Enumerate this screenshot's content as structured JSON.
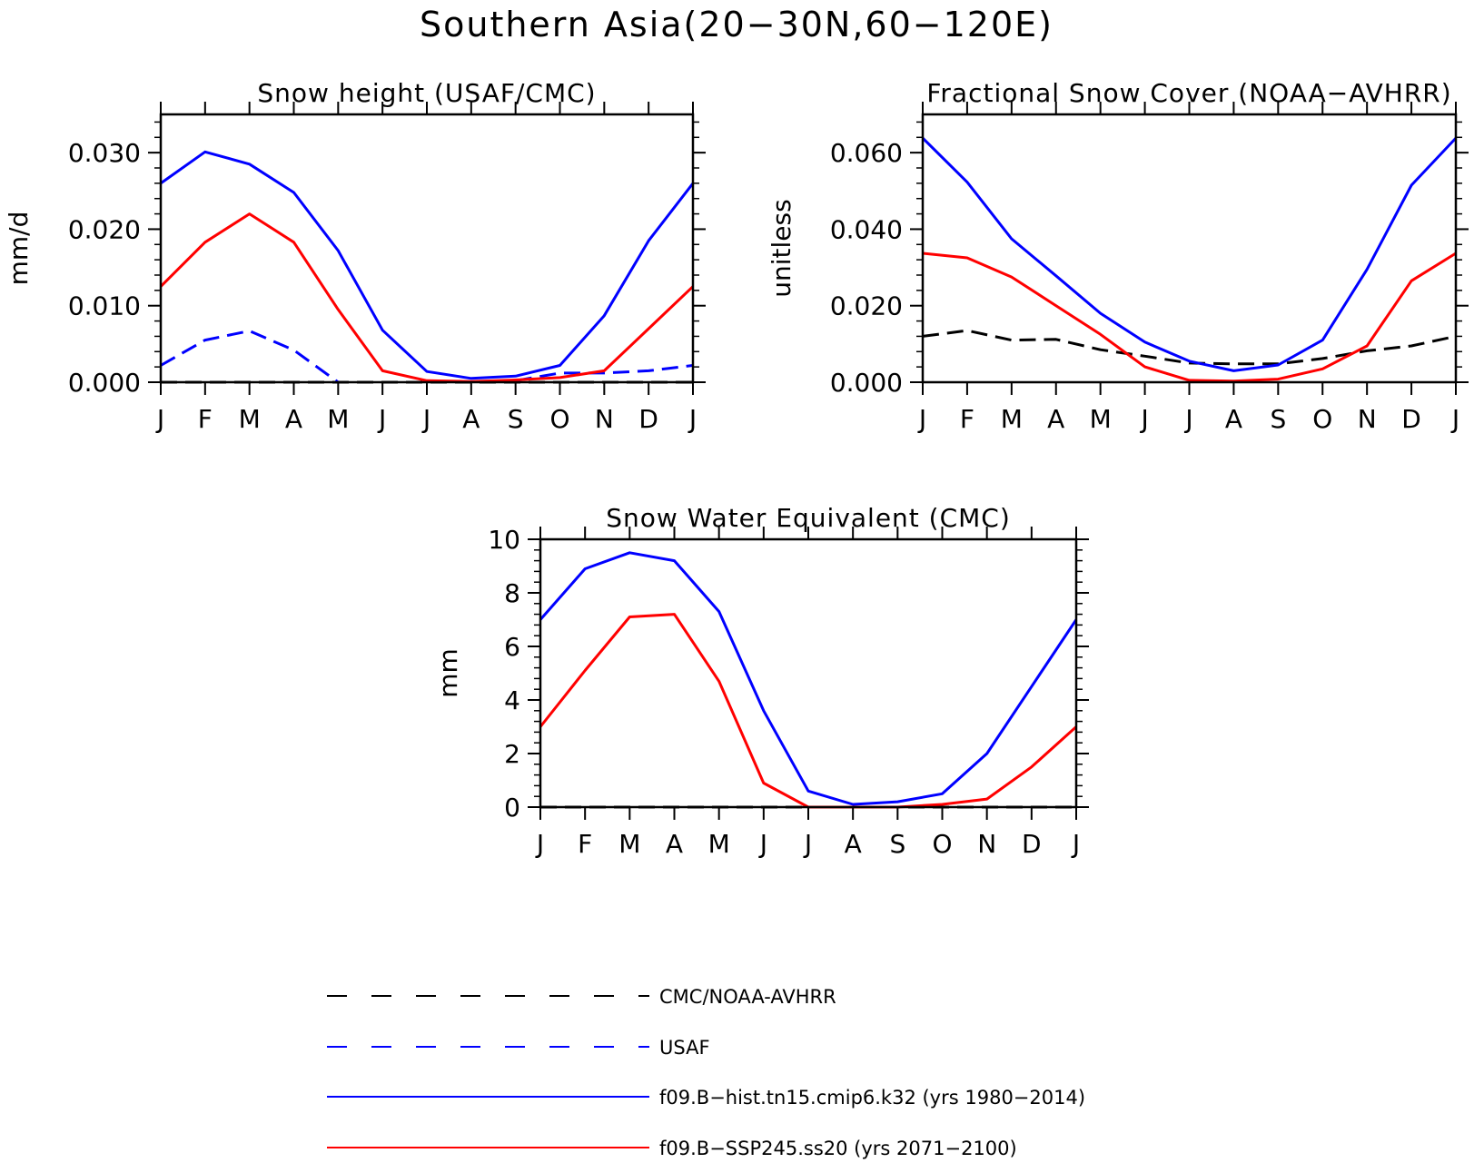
{
  "figure": {
    "title": "Southern Asia(20−30N,60−120E)"
  },
  "colors": {
    "black": "#000000",
    "blue": "#0000ff",
    "red": "#ff0000"
  },
  "legend": {
    "entries": [
      {
        "label": "CMC/NOAA-AVHRR",
        "color": "#000000",
        "dashed": true
      },
      {
        "label": "USAF",
        "color": "#0000ff",
        "dashed": true
      },
      {
        "label": "f09.B−hist.tn15.cmip6.k32 (yrs 1980−2014)",
        "color": "#0000ff",
        "dashed": false
      },
      {
        "label": "f09.B−SSP245.ss20 (yrs 2071−2100)",
        "color": "#ff0000",
        "dashed": false
      }
    ]
  },
  "chart_data": [
    {
      "type": "line",
      "title": "Snow height (USAF/CMC)",
      "xlabel": "",
      "ylabel": "mm/d",
      "categories": [
        "J",
        "F",
        "M",
        "A",
        "M",
        "J",
        "J",
        "A",
        "S",
        "O",
        "N",
        "D",
        "J"
      ],
      "ylim": [
        0,
        0.035
      ],
      "yticks": [
        0,
        0.01,
        0.02,
        0.03
      ],
      "ytick_labels": [
        "0.000",
        "0.010",
        "0.020",
        "0.030"
      ],
      "series": [
        {
          "style": "dashed",
          "color": "#000000",
          "values": [
            0,
            0,
            0,
            0,
            0,
            0,
            0,
            0,
            0,
            0,
            0,
            0,
            0
          ]
        },
        {
          "style": "dashed",
          "color": "#0000ff",
          "values": [
            0.0022,
            0.0055,
            0.0067,
            0.0042,
            0.0,
            null,
            null,
            null,
            0.0002,
            0.0012,
            0.0012,
            0.0015,
            0.0022
          ]
        },
        {
          "style": "solid",
          "color": "#0000ff",
          "values": [
            0.026,
            0.0301,
            0.0285,
            0.0248,
            0.0172,
            0.0068,
            0.0014,
            0.0005,
            0.0008,
            0.0022,
            0.0087,
            0.0185,
            0.026
          ]
        },
        {
          "style": "solid",
          "color": "#ff0000",
          "values": [
            0.0125,
            0.0183,
            0.022,
            0.0183,
            0.0095,
            0.0015,
            0.0002,
            0.0001,
            0.0003,
            0.0006,
            0.0015,
            0.007,
            0.0125
          ]
        }
      ]
    },
    {
      "type": "line",
      "title": "Fractional Snow Cover (NOAA−AVHRR)",
      "xlabel": "",
      "ylabel": "unitless",
      "categories": [
        "J",
        "F",
        "M",
        "A",
        "M",
        "J",
        "J",
        "A",
        "S",
        "O",
        "N",
        "D",
        "J"
      ],
      "ylim": [
        0,
        0.07
      ],
      "yticks": [
        0,
        0.02,
        0.04,
        0.06
      ],
      "ytick_labels": [
        "0.000",
        "0.020",
        "0.040",
        "0.060"
      ],
      "series": [
        {
          "style": "dashed",
          "color": "#000000",
          "values": [
            0.012,
            0.0135,
            0.011,
            0.0112,
            0.0085,
            0.0068,
            0.005,
            0.0048,
            0.0048,
            0.0062,
            0.0082,
            0.0095,
            0.012
          ]
        },
        {
          "style": "solid",
          "color": "#0000ff",
          "values": [
            0.0638,
            0.0523,
            0.0375,
            0.0278,
            0.018,
            0.0105,
            0.0055,
            0.003,
            0.0045,
            0.011,
            0.0295,
            0.0515,
            0.0638
          ]
        },
        {
          "style": "solid",
          "color": "#ff0000",
          "values": [
            0.0337,
            0.0325,
            0.0275,
            0.02,
            0.0125,
            0.004,
            0.0005,
            0.0003,
            0.0008,
            0.0035,
            0.0095,
            0.0265,
            0.0337
          ]
        }
      ]
    },
    {
      "type": "line",
      "title": "Snow Water Equivalent (CMC)",
      "xlabel": "",
      "ylabel": "mm",
      "categories": [
        "J",
        "F",
        "M",
        "A",
        "M",
        "J",
        "J",
        "A",
        "S",
        "O",
        "N",
        "D",
        "J"
      ],
      "ylim": [
        0,
        10
      ],
      "yticks": [
        0,
        2,
        4,
        6,
        8,
        10
      ],
      "ytick_labels": [
        "0",
        "2",
        "4",
        "6",
        "8",
        "10"
      ],
      "series": [
        {
          "style": "dashed",
          "color": "#000000",
          "values": [
            0,
            0,
            0,
            0,
            0,
            0,
            0,
            0,
            0,
            0,
            0,
            0,
            0
          ]
        },
        {
          "style": "solid",
          "color": "#0000ff",
          "values": [
            7.0,
            8.9,
            9.5,
            9.2,
            7.3,
            3.6,
            0.6,
            0.1,
            0.2,
            0.5,
            2.0,
            4.5,
            7.0
          ]
        },
        {
          "style": "solid",
          "color": "#ff0000",
          "values": [
            3.0,
            5.1,
            7.1,
            7.2,
            4.7,
            0.9,
            0.0,
            0.0,
            0.0,
            0.1,
            0.3,
            1.5,
            3.0
          ]
        }
      ]
    }
  ]
}
